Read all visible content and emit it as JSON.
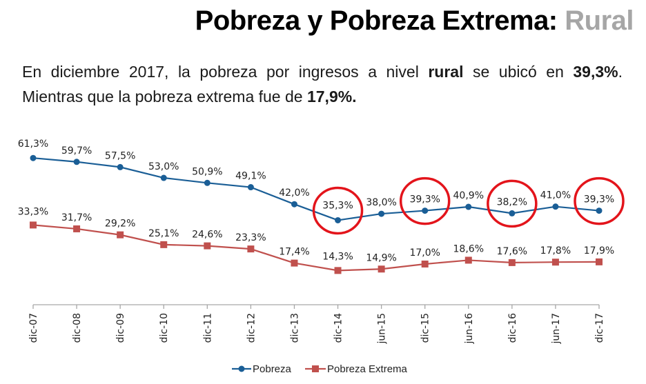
{
  "header": {
    "title_main": "Pobreza y Pobreza Extrema: ",
    "title_accent": "Rural"
  },
  "summary": {
    "part1": "En diciembre 2017, la pobreza por ingresos a nivel ",
    "bold1": "rural",
    "part2": " se ubicó en ",
    "bold2": "39,3%",
    "part3": ". Mientras que la pobreza extrema fue de ",
    "bold3": "17,9%."
  },
  "colors": {
    "pobreza": "#1a5e96",
    "extrema": "#c0504d",
    "highlight": "#e3141b",
    "axis": "#a6a6a6"
  },
  "chart_data": {
    "type": "line",
    "title": "",
    "xlabel": "",
    "ylabel": "",
    "ylim": [
      0,
      70
    ],
    "grid": false,
    "legend_position": "bottom",
    "categories": [
      "dic-07",
      "dic-08",
      "dic-09",
      "dic-10",
      "dic-11",
      "dic-12",
      "dic-13",
      "dic-14",
      "jun-15",
      "dic-15",
      "jun-16",
      "dic-16",
      "jun-17",
      "dic-17"
    ],
    "series": [
      {
        "name": "Pobreza",
        "marker": "circle",
        "values": [
          61.3,
          59.7,
          57.5,
          53.0,
          50.9,
          49.1,
          42.0,
          35.3,
          38.0,
          39.3,
          40.9,
          38.2,
          41.0,
          39.3
        ],
        "labels": [
          "61,3%",
          "59,7%",
          "57,5%",
          "53,0%",
          "50,9%",
          "49,1%",
          "42,0%",
          "35,3%",
          "38,0%",
          "39,3%",
          "40,9%",
          "38,2%",
          "41,0%",
          "39,3%"
        ]
      },
      {
        "name": "Pobreza Extrema",
        "marker": "square",
        "values": [
          33.3,
          31.7,
          29.2,
          25.1,
          24.6,
          23.3,
          17.4,
          14.3,
          14.9,
          17.0,
          18.6,
          17.6,
          17.8,
          17.9
        ],
        "labels": [
          "33,3%",
          "31,7%",
          "29,2%",
          "25,1%",
          "24,6%",
          "23,3%",
          "17,4%",
          "14,3%",
          "14,9%",
          "17,0%",
          "18,6%",
          "17,6%",
          "17,8%",
          "17,9%"
        ]
      }
    ],
    "annotations": {
      "circled_points": [
        "dic-14",
        "dic-15",
        "dic-16",
        "dic-17"
      ],
      "circled_series": "Pobreza"
    }
  }
}
